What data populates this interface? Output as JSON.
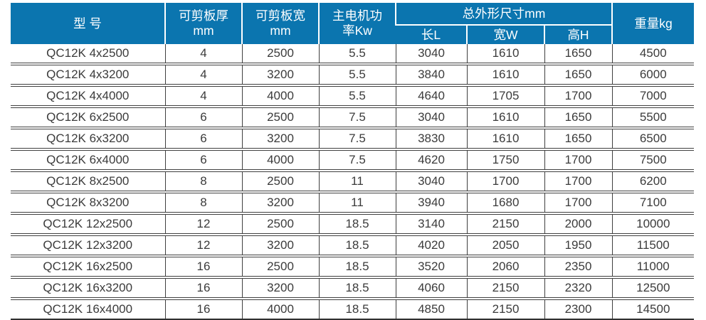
{
  "table": {
    "title_semantics": "QC12K hydraulic shearing machine specification table",
    "headers": {
      "model": "型 号",
      "cut_thickness": "可剪板厚\nmm",
      "cut_width": "可剪板宽\nmm",
      "motor_power": "主电机功\n率Kw",
      "dimensions_group": "总外形尺寸mm",
      "dim_length": "长L",
      "dim_width": "宽W",
      "dim_height": "高H",
      "weight": "重量kg"
    },
    "rows": [
      [
        "QC12K 4x2500",
        "4",
        "2500",
        "5.5",
        "3040",
        "1610",
        "1650",
        "4500"
      ],
      [
        "QC12K 4x3200",
        "4",
        "3200",
        "5.5",
        "3840",
        "1610",
        "1650",
        "6000"
      ],
      [
        "QC12K 4x4000",
        "4",
        "4000",
        "5.5",
        "4640",
        "1705",
        "1700",
        "7000"
      ],
      [
        "QC12K 6x2500",
        "6",
        "2500",
        "7.5",
        "3040",
        "1610",
        "1650",
        "5500"
      ],
      [
        "QC12K 6x3200",
        "6",
        "3200",
        "7.5",
        "3830",
        "1610",
        "1650",
        "6500"
      ],
      [
        "QC12K 6x4000",
        "6",
        "4000",
        "7.5",
        "4620",
        "1750",
        "1700",
        "7500"
      ],
      [
        "QC12K 8x2500",
        "8",
        "2500",
        "11",
        "3040",
        "1700",
        "1700",
        "6200"
      ],
      [
        "QC12K 8x3200",
        "8",
        "3200",
        "11",
        "3940",
        "1680",
        "1700",
        "7100"
      ],
      [
        "QC12K 12x2500",
        "12",
        "2500",
        "18.5",
        "3140",
        "2150",
        "2000",
        "10000"
      ],
      [
        "QC12K 12x3200",
        "12",
        "3200",
        "18.5",
        "4020",
        "2050",
        "1950",
        "11500"
      ],
      [
        "QC12K 16x2500",
        "16",
        "2500",
        "18.5",
        "3520",
        "2060",
        "2350",
        "11000"
      ],
      [
        "QC12K 16x3200",
        "16",
        "3200",
        "18.5",
        "4060",
        "2150",
        "2320",
        "12500"
      ],
      [
        "QC12K 16x4000",
        "16",
        "4000",
        "18.5",
        "4850",
        "2150",
        "2300",
        "14500"
      ]
    ]
  },
  "colors": {
    "header_bg": "#0b75af",
    "header_text": "#ffffff",
    "body_text": "#3b3b3b",
    "grid_line": "#3f3f3f"
  }
}
